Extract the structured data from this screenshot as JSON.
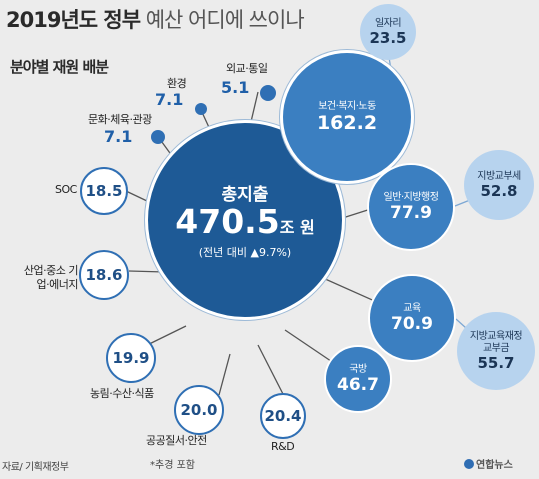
{
  "title_bold": "2019년도 정부",
  "title_light": "예산 어디에 쓰이나",
  "subtitle": "분야별 재원 배분",
  "center": {
    "label": "총지출",
    "value": "470.5",
    "unit": "조 원",
    "change": "(전년 대비 ▲9.7%)"
  },
  "items": {
    "welfare": {
      "label": "보건·복지·노동",
      "value": "162.2"
    },
    "jobs": {
      "label": "일자리",
      "value": "23.5"
    },
    "admin": {
      "label": "일반·지방행정",
      "value": "77.9"
    },
    "local_tax": {
      "label": "지방교부세",
      "value": "52.8"
    },
    "education": {
      "label": "교육",
      "value": "70.9"
    },
    "edu_grant": {
      "label": "지방교육재정 교부금",
      "value": "55.7"
    },
    "defense": {
      "label": "국방",
      "value": "46.7"
    },
    "rnd": {
      "label": "R&D",
      "value": "20.4"
    },
    "safety": {
      "label": "공공질서·안전",
      "value": "20.0"
    },
    "agri": {
      "label": "농림·수산·식품",
      "value": "19.9"
    },
    "industry": {
      "label": "산업·중소 기업·에너지",
      "value": "18.6"
    },
    "soc": {
      "label": "SOC",
      "value": "18.5"
    },
    "culture": {
      "label": "문화·체육·관광",
      "value": "7.1"
    },
    "environment": {
      "label": "환경",
      "value": "7.1"
    },
    "diplomacy": {
      "label": "외교·통일",
      "value": "5.1"
    }
  },
  "note": "*추경 포함",
  "source": "자료/ 기획재정부",
  "logo": "연합뉴스",
  "colors": {
    "main": "#1e5a96",
    "accent": "#3b7fc1",
    "ring": "#2f6fb4",
    "pale": "#b7d3ee"
  }
}
